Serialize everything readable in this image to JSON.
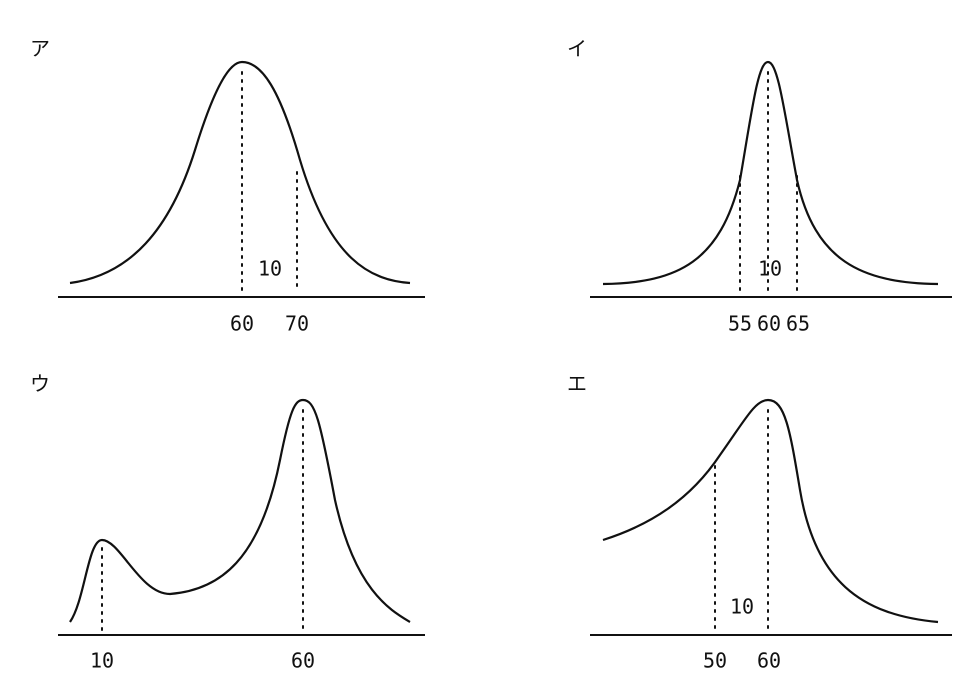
{
  "panels": [
    {
      "label": "ア",
      "ticks": [
        "60",
        "70"
      ],
      "note": "10"
    },
    {
      "label": "イ",
      "ticks": [
        "55",
        "60",
        "65"
      ],
      "note": "10"
    },
    {
      "label": "ウ",
      "ticks": [
        "10",
        "60"
      ]
    },
    {
      "label": "エ",
      "ticks": [
        "50",
        "60"
      ],
      "note": "10"
    }
  ]
}
